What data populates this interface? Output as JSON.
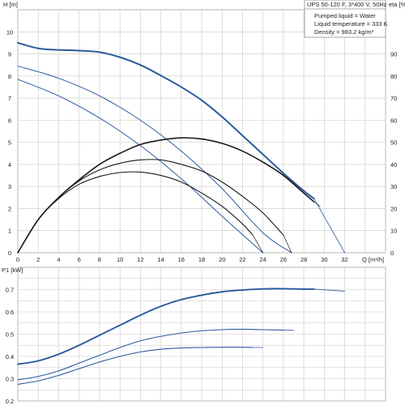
{
  "header": {
    "title": "UPS 50-120 F, 3*400 V, 50Hz",
    "info_lines": [
      "Pumped liquid = Water",
      "Liquid temperature = 333 K",
      "Density = 983.2 kg/m³"
    ]
  },
  "chart_data": [
    {
      "type": "line",
      "panel": "head-efficiency",
      "xlabel": "Q [m³/h]",
      "ylabel": "H [m]",
      "y2label": "eta [%]",
      "xlim": [
        0,
        36
      ],
      "ylim": [
        0,
        11
      ],
      "y2lim": [
        0,
        110
      ],
      "xticks": [
        "0",
        "2",
        "4",
        "6",
        "8",
        "10",
        "12",
        "14",
        "16",
        "18",
        "20",
        "22",
        "24",
        "26",
        "28",
        "30",
        "32"
      ],
      "yticks": [
        "0",
        "1",
        "2",
        "3",
        "4",
        "5",
        "6",
        "7",
        "8",
        "9",
        "10"
      ],
      "y2ticks": [
        "0",
        "10",
        "20",
        "30",
        "40",
        "50",
        "60",
        "70",
        "80",
        "90"
      ],
      "grid": true,
      "colors": {
        "head": "#2a5a9e",
        "efficiency": "#1a1a1a"
      },
      "series": [
        {
          "kind": "head",
          "width": 2.0,
          "x": [
            0,
            2,
            4,
            6,
            8,
            10,
            12,
            14,
            16,
            18,
            20,
            22,
            24,
            26,
            28,
            29
          ],
          "y": [
            9.5,
            9.25,
            9.18,
            9.15,
            9.08,
            8.85,
            8.5,
            8.02,
            7.5,
            6.9,
            6.15,
            5.3,
            4.45,
            3.6,
            2.8,
            2.45
          ]
        },
        {
          "kind": "head",
          "width": 1.0,
          "x": [
            0,
            4,
            8,
            12,
            16,
            20,
            24,
            26.8
          ],
          "y": [
            8.45,
            7.9,
            7.1,
            6.0,
            4.6,
            2.9,
            0.9,
            0.0
          ]
        },
        {
          "kind": "head",
          "width": 1.0,
          "x": [
            0,
            4,
            8,
            12,
            16,
            20,
            23.5,
            24
          ],
          "y": [
            7.85,
            7.1,
            6.1,
            4.85,
            3.35,
            1.65,
            0.2,
            0.0
          ]
        },
        {
          "kind": "head",
          "width": 0.8,
          "x": [
            29,
            32
          ],
          "y": [
            2.45,
            0.0
          ]
        },
        {
          "kind": "efficiency",
          "width": 1.6,
          "x": [
            0,
            2,
            4,
            6,
            8,
            10,
            12,
            14,
            16,
            18,
            20,
            22,
            24,
            26,
            28,
            29
          ],
          "y": [
            0,
            15,
            25,
            33,
            40,
            45,
            49,
            51,
            52,
            51.5,
            49.5,
            46,
            41,
            35,
            27,
            23
          ]
        },
        {
          "kind": "efficiency",
          "width": 1.1,
          "x": [
            0,
            2,
            4,
            6,
            8,
            10,
            12,
            14,
            16,
            18,
            20,
            22,
            24,
            26
          ],
          "y": [
            0,
            15,
            25,
            32.5,
            37.5,
            40.5,
            42,
            42,
            40,
            37,
            32,
            25.5,
            18,
            8
          ]
        },
        {
          "kind": "efficiency",
          "width": 1.1,
          "x": [
            0,
            2,
            4,
            6,
            8,
            10,
            12,
            14,
            16,
            18,
            20,
            22,
            23
          ],
          "y": [
            0,
            15,
            24.5,
            31,
            34.5,
            36.3,
            36.5,
            35,
            32,
            27,
            21,
            13,
            8
          ]
        },
        {
          "kind": "efficiency",
          "width": 0.7,
          "x": [
            29,
            29.6
          ],
          "y": [
            23,
            21
          ]
        },
        {
          "kind": "efficiency",
          "width": 0.7,
          "x": [
            26,
            26.8
          ],
          "y": [
            8,
            0
          ]
        },
        {
          "kind": "efficiency",
          "width": 0.7,
          "x": [
            23,
            24
          ],
          "y": [
            8,
            0
          ]
        }
      ]
    },
    {
      "type": "line",
      "panel": "power",
      "xlabel": "",
      "ylabel": "P1 [kW]",
      "xlim": [
        0,
        36
      ],
      "ylim": [
        0.2,
        0.8
      ],
      "yticks": [
        "0.2",
        "0.3",
        "0.4",
        "0.5",
        "0.6",
        "0.7"
      ],
      "grid": true,
      "colors": {
        "power": "#2a5a9e"
      },
      "series": [
        {
          "width": 1.9,
          "x": [
            0,
            2,
            4,
            6,
            8,
            10,
            12,
            14,
            16,
            18,
            20,
            22,
            24,
            26,
            28,
            29
          ],
          "y": [
            0.365,
            0.38,
            0.41,
            0.45,
            0.495,
            0.54,
            0.585,
            0.625,
            0.655,
            0.675,
            0.69,
            0.698,
            0.703,
            0.704,
            0.702,
            0.702
          ]
        },
        {
          "width": 0.8,
          "x": [
            29,
            32
          ],
          "y": [
            0.702,
            0.693
          ]
        },
        {
          "width": 1.1,
          "x": [
            0,
            2,
            4,
            6,
            8,
            10,
            12,
            14,
            16,
            18,
            20,
            22,
            24,
            26
          ],
          "y": [
            0.295,
            0.31,
            0.335,
            0.37,
            0.405,
            0.44,
            0.47,
            0.49,
            0.505,
            0.515,
            0.52,
            0.522,
            0.52,
            0.518
          ]
        },
        {
          "width": 0.8,
          "x": [
            26,
            27
          ],
          "y": [
            0.518,
            0.517
          ]
        },
        {
          "width": 1.1,
          "x": [
            0,
            2,
            4,
            6,
            8,
            10,
            12,
            14,
            16,
            18,
            20,
            22,
            23
          ],
          "y": [
            0.275,
            0.29,
            0.315,
            0.345,
            0.375,
            0.4,
            0.42,
            0.432,
            0.438,
            0.44,
            0.441,
            0.441,
            0.44
          ]
        },
        {
          "width": 0.8,
          "x": [
            23,
            24
          ],
          "y": [
            0.44,
            0.44
          ]
        }
      ]
    }
  ]
}
